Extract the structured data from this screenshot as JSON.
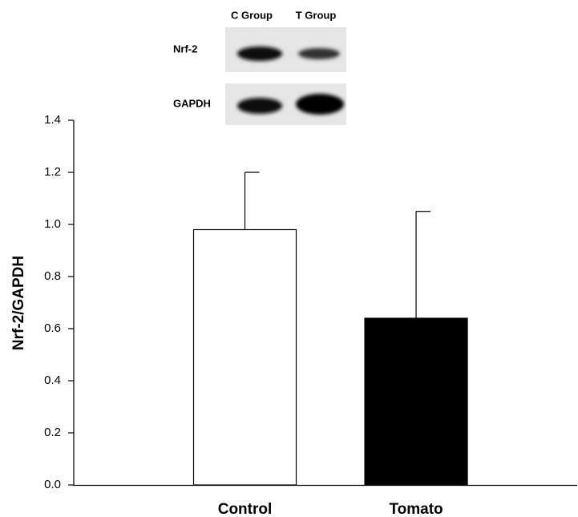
{
  "chart_data": {
    "type": "bar",
    "y_label": "Nrf-2/GAPDH",
    "categories": [
      "Control",
      "Tomato"
    ],
    "values": [
      0.98,
      0.64
    ],
    "errors": [
      0.22,
      0.41
    ],
    "colors": [
      "#ffffff",
      "#000000"
    ],
    "ylim": [
      0,
      1.4
    ],
    "yticks": [
      {
        "value": 0,
        "label": "0.0"
      },
      0.2,
      0.4,
      0.6,
      0.8,
      {
        "value": 1,
        "label": "1.0"
      },
      1.2,
      1.4
    ],
    "inset": {
      "columns": [
        "C Group",
        "T Group"
      ],
      "rows": [
        "Nrf-2",
        "GAPDH"
      ]
    }
  }
}
